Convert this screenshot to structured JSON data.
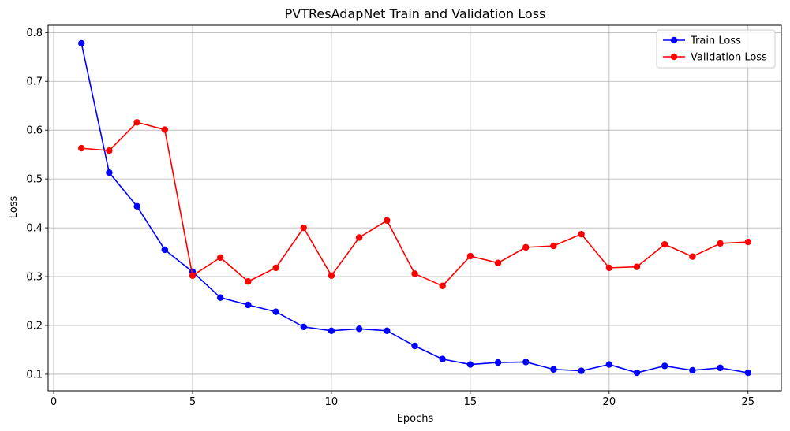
{
  "chart_data": {
    "type": "line",
    "title": "PVTResAdapNet Train and Validation Loss",
    "xlabel": "Epochs",
    "ylabel": "Loss",
    "xlim": [
      -0.2,
      26.2
    ],
    "ylim": [
      0.066,
      0.815
    ],
    "xticks": [
      0,
      5,
      10,
      15,
      20,
      25
    ],
    "yticks": [
      0.1,
      0.2,
      0.3,
      0.4,
      0.5,
      0.6,
      0.7,
      0.8
    ],
    "grid": true,
    "legend_position": "upper right",
    "x": [
      1,
      2,
      3,
      4,
      5,
      6,
      7,
      8,
      9,
      10,
      11,
      12,
      13,
      14,
      15,
      16,
      17,
      18,
      19,
      20,
      21,
      22,
      23,
      24,
      25
    ],
    "series": [
      {
        "name": "Train Loss",
        "color": "#0000ff",
        "marker": "circle",
        "values": [
          0.778,
          0.513,
          0.444,
          0.355,
          0.31,
          0.257,
          0.242,
          0.228,
          0.197,
          0.189,
          0.193,
          0.189,
          0.158,
          0.131,
          0.12,
          0.124,
          0.125,
          0.11,
          0.107,
          0.12,
          0.103,
          0.117,
          0.108,
          0.113,
          0.103
        ]
      },
      {
        "name": "Validation Loss",
        "color": "#ff0000",
        "marker": "circle",
        "values": [
          0.563,
          0.558,
          0.616,
          0.601,
          0.302,
          0.339,
          0.29,
          0.318,
          0.4,
          0.302,
          0.38,
          0.415,
          0.306,
          0.281,
          0.342,
          0.328,
          0.36,
          0.363,
          0.387,
          0.318,
          0.32,
          0.366,
          0.341,
          0.368,
          0.371
        ]
      }
    ]
  }
}
